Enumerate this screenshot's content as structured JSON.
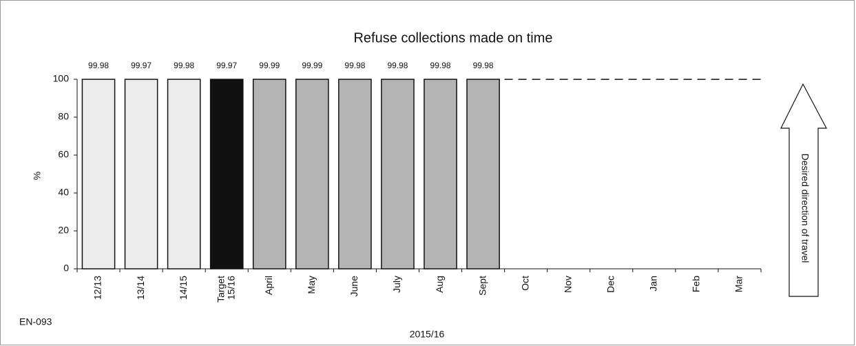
{
  "chart_data": {
    "type": "bar",
    "title": "Refuse collections made on time",
    "code": "EN-093",
    "x_label": "2015/16",
    "y_label": "%",
    "annotation": "Desired direction of travel",
    "categories": [
      "12/13",
      "13/14",
      "14/15",
      "Target 15/16",
      "April",
      "May",
      "June",
      "July",
      "Aug",
      "Sept",
      "Oct",
      "Nov",
      "Dec",
      "Jan",
      "Feb",
      "Mar"
    ],
    "values": [
      99.98,
      99.97,
      99.98,
      99.97,
      99.99,
      99.99,
      99.98,
      99.98,
      99.98,
      99.98,
      null,
      null,
      null,
      null,
      null,
      null
    ],
    "colors": [
      "#ececec",
      "#ececec",
      "#ececec",
      "#111111",
      "#b4b4b4",
      "#b4b4b4",
      "#b4b4b4",
      "#b4b4b4",
      "#b4b4b4",
      "#b4b4b4",
      null,
      null,
      null,
      null,
      null,
      null
    ],
    "target": 99.97,
    "ylim": [
      0,
      100
    ],
    "yticks": [
      0,
      20,
      40,
      60,
      80,
      100
    ]
  }
}
